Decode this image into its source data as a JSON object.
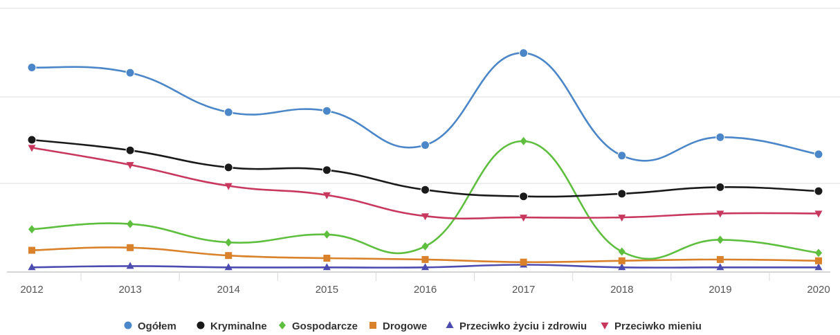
{
  "chart_data": {
    "type": "line",
    "title": "",
    "xlabel": "",
    "ylabel": "",
    "smooth": true,
    "grid": true,
    "y_tick_labels_shown": false,
    "legend_position": "bottom-center",
    "categories": [
      "2012",
      "2013",
      "2014",
      "2015",
      "2016",
      "2017",
      "2018",
      "2019",
      "2020"
    ],
    "ylim": [
      0,
      100
    ],
    "series": [
      {
        "name": "Ogółem",
        "color": "#4a86c8",
        "marker": "circle",
        "values": [
          77.5,
          75.5,
          60.5,
          61,
          48,
          83,
          44,
          51,
          44.5
        ]
      },
      {
        "name": "Kryminalne",
        "color": "#1a1a1a",
        "marker": "circle",
        "values": [
          50,
          46,
          39.5,
          38.5,
          31,
          28.5,
          29.5,
          32,
          30.5
        ]
      },
      {
        "name": "Gospodarcze",
        "color": "#5dbf3d",
        "marker": "diamond",
        "values": [
          16,
          18,
          11,
          14,
          9.5,
          49.5,
          7.5,
          12,
          7
        ]
      },
      {
        "name": "Drogowe",
        "color": "#d9822b",
        "marker": "square",
        "values": [
          8,
          9,
          6,
          5,
          4.5,
          3.5,
          4,
          4.5,
          4
        ]
      },
      {
        "name": "Przeciwko życiu i zdrowiu",
        "color": "#4c4cb0",
        "marker": "triangle",
        "values": [
          1.5,
          2,
          1.5,
          1.5,
          1.5,
          2.5,
          1.5,
          1.5,
          1.5
        ]
      },
      {
        "name": "Przeciwko mieniu",
        "color": "#c8385e",
        "marker": "triangle-down",
        "values": [
          47,
          40.5,
          32.5,
          29,
          21,
          20.5,
          20.5,
          22,
          22
        ]
      }
    ]
  }
}
